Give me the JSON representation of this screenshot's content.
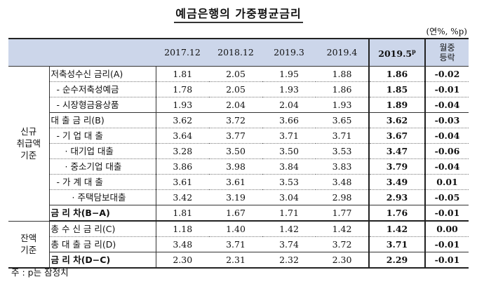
{
  "title": "예금은행의 가중평균금리",
  "unit": "(연%, %p)",
  "columns": {
    "c1": "2017.12",
    "c2": "2018.12",
    "c3": "2019.3",
    "c4": "2019.4",
    "c5": "2019.5",
    "c5_sup": "p",
    "c6_line1": "월중",
    "c6_line2": "등락"
  },
  "groups": {
    "new_line1": "신규",
    "new_line2": "취급액",
    "new_line3": "기준",
    "bal_line1": "잔액",
    "bal_line2": "기준"
  },
  "rows": [
    {
      "label": "저축성수신 금리(A)",
      "values": [
        "1.81",
        "2.05",
        "1.95",
        "1.88",
        "1.86",
        "-0.02"
      ]
    },
    {
      "label": "- 순수저축성예금",
      "values": [
        "1.78",
        "2.05",
        "1.93",
        "1.86",
        "1.85",
        "-0.01"
      ]
    },
    {
      "label": "- 시장형금융상품",
      "values": [
        "1.93",
        "2.04",
        "2.04",
        "1.93",
        "1.89",
        "-0.04"
      ]
    },
    {
      "label": "대 출 금 리(B)",
      "values": [
        "3.62",
        "3.72",
        "3.66",
        "3.65",
        "3.62",
        "-0.03"
      ]
    },
    {
      "label": "- 기 업 대 출",
      "values": [
        "3.64",
        "3.77",
        "3.71",
        "3.71",
        "3.67",
        "-0.04"
      ]
    },
    {
      "label": "· 대기업 대출",
      "values": [
        "3.28",
        "3.50",
        "3.50",
        "3.53",
        "3.47",
        "-0.06"
      ]
    },
    {
      "label": "· 중소기업 대출",
      "values": [
        "3.86",
        "3.98",
        "3.84",
        "3.83",
        "3.79",
        "-0.04"
      ]
    },
    {
      "label": "- 가 계 대 출",
      "values": [
        "3.61",
        "3.61",
        "3.53",
        "3.48",
        "3.49",
        "0.01"
      ]
    },
    {
      "label": "· 주택담보대출",
      "values": [
        "3.42",
        "3.19",
        "3.04",
        "2.98",
        "2.93",
        "-0.05"
      ]
    },
    {
      "label": "금 리 차(B−A)",
      "values": [
        "1.81",
        "1.67",
        "1.71",
        "1.77",
        "1.76",
        "-0.01"
      ]
    },
    {
      "label": "총 수 신 금 리(C)",
      "values": [
        "1.18",
        "1.40",
        "1.42",
        "1.42",
        "1.42",
        "0.00"
      ]
    },
    {
      "label": "총 대 출 금 리(D)",
      "values": [
        "3.48",
        "3.71",
        "3.74",
        "3.72",
        "3.71",
        "-0.01"
      ]
    },
    {
      "label": "금 리 차(D−C)",
      "values": [
        "2.30",
        "2.31",
        "2.32",
        "2.30",
        "2.29",
        "-0.01"
      ]
    }
  ],
  "note": "주 : p는 잠정치"
}
